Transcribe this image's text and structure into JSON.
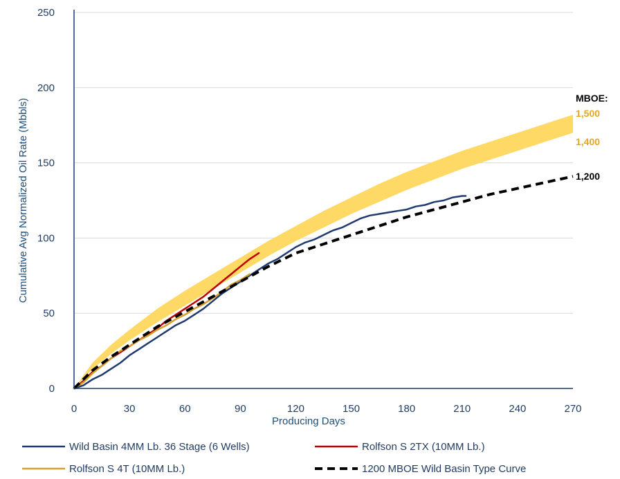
{
  "chart_data": {
    "type": "line",
    "title": "",
    "xlabel": "Producing Days",
    "ylabel": "Cumulative Avg Normalized Oil Rate (Mbbls)",
    "xlim": [
      0,
      270
    ],
    "ylim": [
      0,
      250
    ],
    "x_ticks": [
      0,
      30,
      60,
      90,
      120,
      150,
      180,
      210,
      240,
      270
    ],
    "y_ticks": [
      0,
      50,
      100,
      150,
      200,
      250
    ],
    "x_tick_labels": [
      "0",
      "30",
      "60",
      "90",
      "120",
      "150",
      "180",
      "210",
      "240",
      "270"
    ],
    "y_tick_labels": [
      "0",
      "50",
      "100",
      "150",
      "200",
      "250"
    ],
    "grid": "horizontal",
    "legend_position": "bottom",
    "band": {
      "color": "#FFD966",
      "x": [
        0,
        10,
        20,
        30,
        45,
        60,
        75,
        90,
        105,
        120,
        135,
        150,
        165,
        180,
        195,
        210,
        225,
        240,
        255,
        270
      ],
      "lower": [
        0,
        13,
        23,
        32,
        44,
        55,
        66,
        77,
        88,
        98,
        107,
        116,
        124,
        132,
        139,
        146,
        152,
        158,
        164,
        170
      ],
      "upper": [
        0,
        17,
        29,
        39,
        53,
        65,
        76,
        87,
        98,
        108,
        118,
        127,
        136,
        144,
        151,
        158,
        164,
        170,
        176,
        182
      ]
    },
    "annotations": [
      {
        "text": "MBOE:",
        "color": "#000000",
        "x": 270,
        "y": 193
      },
      {
        "text": "1,500",
        "color": "#E4A81D",
        "x": 270,
        "y": 183
      },
      {
        "text": "1,400",
        "color": "#E4A81D",
        "x": 270,
        "y": 164
      },
      {
        "text": "1,200",
        "color": "#000000",
        "x": 270,
        "y": 141
      }
    ],
    "series": [
      {
        "name": "Wild Basin 4MM Lb. 36 Stage (6 Wells)",
        "color": "#1F3A6E",
        "dash": false,
        "x": [
          0,
          5,
          10,
          15,
          20,
          25,
          30,
          35,
          40,
          45,
          50,
          55,
          60,
          65,
          70,
          75,
          80,
          85,
          90,
          95,
          100,
          105,
          110,
          115,
          120,
          125,
          130,
          135,
          140,
          145,
          150,
          155,
          160,
          165,
          170,
          175,
          180,
          185,
          190,
          195,
          200,
          205,
          210,
          212
        ],
        "values": [
          0,
          2,
          6,
          9,
          13,
          17,
          22,
          26,
          30,
          34,
          38,
          42,
          45,
          49,
          53,
          58,
          63,
          67,
          71,
          75,
          79,
          83,
          86,
          90,
          94,
          97,
          99,
          102,
          105,
          107,
          110,
          113,
          115,
          116,
          117,
          118,
          119,
          121,
          122,
          124,
          125,
          127,
          128,
          128
        ]
      },
      {
        "name": "Rolfson S 2TX (10MM Lb.)",
        "color": "#C00000",
        "dash": false,
        "x": [
          0,
          5,
          10,
          15,
          20,
          25,
          30,
          35,
          40,
          45,
          50,
          55,
          60,
          65,
          70,
          75,
          80,
          85,
          90,
          95,
          100
        ],
        "values": [
          0,
          5,
          11,
          15,
          20,
          24,
          28,
          32,
          36,
          40,
          45,
          49,
          53,
          57,
          61,
          66,
          71,
          76,
          81,
          86,
          90
        ]
      },
      {
        "name": "Rolfson S 4T (10MM Lb.)",
        "color": "#D4A02A",
        "dash": false,
        "x": [
          0,
          5,
          10,
          15,
          20,
          25,
          30,
          35,
          40,
          45,
          50,
          55,
          60,
          65,
          70,
          75,
          80,
          85,
          90,
          95
        ],
        "values": [
          0,
          4,
          10,
          15,
          20,
          25,
          28,
          32,
          35,
          39,
          42,
          46,
          49,
          53,
          56,
          60,
          64,
          69,
          72,
          76
        ]
      },
      {
        "name": "1200 MBOE Wild Basin Type Curve",
        "color": "#000000",
        "dash": true,
        "x": [
          0,
          10,
          20,
          30,
          45,
          60,
          75,
          90,
          105,
          120,
          135,
          150,
          165,
          180,
          195,
          210,
          225,
          240,
          255,
          270
        ],
        "values": [
          0,
          12,
          21,
          29,
          41,
          51,
          61,
          71,
          81,
          90,
          96,
          102,
          108,
          114,
          119,
          124,
          129,
          133,
          137,
          141
        ]
      }
    ]
  }
}
